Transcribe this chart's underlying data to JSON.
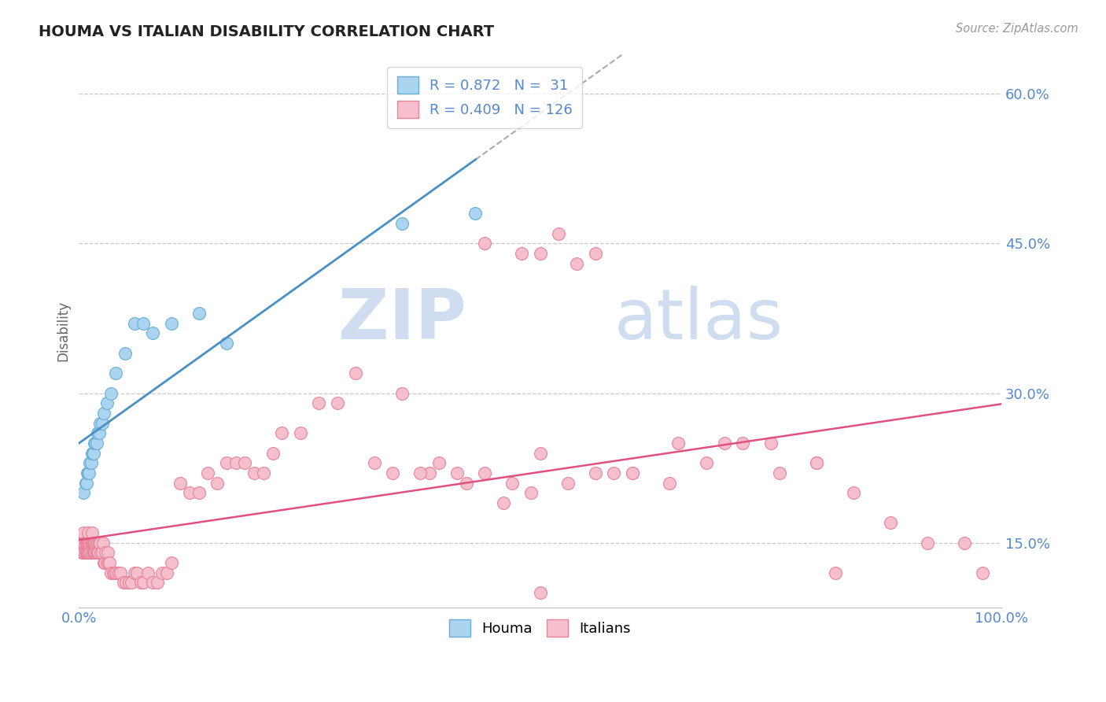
{
  "title": "HOUMA VS ITALIAN DISABILITY CORRELATION CHART",
  "source": "Source: ZipAtlas.com",
  "ylabel": "Disability",
  "xlim": [
    0,
    1.0
  ],
  "ylim": [
    0.085,
    0.64
  ],
  "yticks": [
    0.15,
    0.3,
    0.45,
    0.6
  ],
  "ytick_labels": [
    "15.0%",
    "30.0%",
    "45.0%",
    "60.0%"
  ],
  "xtick_labels": [
    "0.0%",
    "100.0%"
  ],
  "houma_R": "0.872",
  "houma_N": "31",
  "italians_R": "0.409",
  "italians_N": "126",
  "houma_color": "#aad4f0",
  "houma_edge_color": "#6aaed6",
  "italians_color": "#f5bfce",
  "italians_edge_color": "#e8829a",
  "houma_line_color": "#4a90c4",
  "houma_dash_color": "#aaaaaa",
  "italians_line_color": "#e05080",
  "title_color": "#222222",
  "axis_label_color": "#5588cc",
  "grid_color": "#c8c8c8",
  "background_color": "#ffffff",
  "watermark_zip": "ZIP",
  "watermark_atlas": "atlas",
  "houma_x": [
    0.005,
    0.007,
    0.008,
    0.009,
    0.01,
    0.011,
    0.012,
    0.013,
    0.014,
    0.015,
    0.016,
    0.017,
    0.018,
    0.019,
    0.02,
    0.022,
    0.023,
    0.025,
    0.027,
    0.03,
    0.035,
    0.04,
    0.05,
    0.06,
    0.07,
    0.08,
    0.1,
    0.13,
    0.16,
    0.35,
    0.43
  ],
  "houma_y": [
    0.2,
    0.21,
    0.21,
    0.22,
    0.22,
    0.22,
    0.23,
    0.23,
    0.24,
    0.24,
    0.24,
    0.25,
    0.25,
    0.25,
    0.26,
    0.26,
    0.27,
    0.27,
    0.28,
    0.29,
    0.3,
    0.32,
    0.34,
    0.37,
    0.37,
    0.36,
    0.37,
    0.38,
    0.35,
    0.47,
    0.48
  ],
  "italians_x": [
    0.002,
    0.003,
    0.004,
    0.005,
    0.005,
    0.005,
    0.006,
    0.006,
    0.007,
    0.007,
    0.008,
    0.008,
    0.009,
    0.009,
    0.01,
    0.01,
    0.01,
    0.011,
    0.011,
    0.012,
    0.012,
    0.013,
    0.013,
    0.014,
    0.014,
    0.015,
    0.015,
    0.016,
    0.016,
    0.017,
    0.017,
    0.018,
    0.018,
    0.019,
    0.019,
    0.02,
    0.02,
    0.021,
    0.022,
    0.023,
    0.024,
    0.025,
    0.026,
    0.027,
    0.028,
    0.029,
    0.03,
    0.031,
    0.032,
    0.033,
    0.035,
    0.037,
    0.039,
    0.041,
    0.043,
    0.045,
    0.048,
    0.051,
    0.054,
    0.057,
    0.06,
    0.063,
    0.067,
    0.07,
    0.075,
    0.08,
    0.085,
    0.09,
    0.095,
    0.1,
    0.11,
    0.12,
    0.13,
    0.14,
    0.15,
    0.16,
    0.17,
    0.18,
    0.19,
    0.2,
    0.21,
    0.22,
    0.24,
    0.26,
    0.28,
    0.3,
    0.32,
    0.35,
    0.38,
    0.41,
    0.44,
    0.47,
    0.5,
    0.53,
    0.56,
    0.6,
    0.65,
    0.7,
    0.75,
    0.8,
    0.44,
    0.48,
    0.5,
    0.52,
    0.54,
    0.56,
    0.58,
    0.6,
    0.64,
    0.68,
    0.72,
    0.76,
    0.8,
    0.84,
    0.88,
    0.92,
    0.96,
    0.98,
    0.5,
    0.82,
    0.34,
    0.37,
    0.39,
    0.42,
    0.46,
    0.49
  ],
  "italians_y": [
    0.15,
    0.14,
    0.15,
    0.14,
    0.15,
    0.16,
    0.14,
    0.15,
    0.15,
    0.14,
    0.14,
    0.15,
    0.14,
    0.15,
    0.14,
    0.15,
    0.16,
    0.14,
    0.15,
    0.14,
    0.15,
    0.14,
    0.15,
    0.15,
    0.16,
    0.14,
    0.15,
    0.14,
    0.15,
    0.14,
    0.15,
    0.14,
    0.15,
    0.15,
    0.14,
    0.14,
    0.15,
    0.14,
    0.15,
    0.15,
    0.14,
    0.14,
    0.15,
    0.13,
    0.13,
    0.14,
    0.13,
    0.14,
    0.13,
    0.13,
    0.12,
    0.12,
    0.12,
    0.12,
    0.12,
    0.12,
    0.11,
    0.11,
    0.11,
    0.11,
    0.12,
    0.12,
    0.11,
    0.11,
    0.12,
    0.11,
    0.11,
    0.12,
    0.12,
    0.13,
    0.21,
    0.2,
    0.2,
    0.22,
    0.21,
    0.23,
    0.23,
    0.23,
    0.22,
    0.22,
    0.24,
    0.26,
    0.26,
    0.29,
    0.29,
    0.32,
    0.23,
    0.3,
    0.22,
    0.22,
    0.22,
    0.21,
    0.24,
    0.21,
    0.22,
    0.22,
    0.25,
    0.25,
    0.25,
    0.23,
    0.45,
    0.44,
    0.44,
    0.46,
    0.43,
    0.44,
    0.22,
    0.22,
    0.21,
    0.23,
    0.25,
    0.22,
    0.23,
    0.2,
    0.17,
    0.15,
    0.15,
    0.12,
    0.1,
    0.12,
    0.22,
    0.22,
    0.23,
    0.21,
    0.19,
    0.2
  ]
}
